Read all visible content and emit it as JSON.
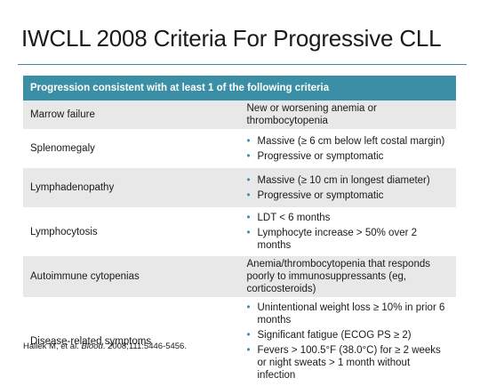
{
  "title": "IWCLL 2008 Criteria For Progressive CLL",
  "table": {
    "header": "Progression consistent with at least 1 of the following criteria",
    "rows": [
      {
        "label": "Marrow failure",
        "text": "New or worsening anemia or thrombocytopenia"
      },
      {
        "label": "Splenomegaly",
        "bullets": [
          "Massive (≥ 6 cm below left costal margin)",
          "Progressive or symptomatic"
        ]
      },
      {
        "label": "Lymphadenopathy",
        "bullets": [
          "Massive (≥ 10 cm in longest diameter)",
          "Progressive or symptomatic"
        ]
      },
      {
        "label": "Lymphocytosis",
        "bullets": [
          "LDT < 6 months",
          "Lymphocyte increase > 50% over 2 months"
        ]
      },
      {
        "label": "Autoimmune cytopenias",
        "text": "Anemia/thrombocytopenia that responds poorly to immunosuppressants (eg, corticosteroids)"
      },
      {
        "label": "Disease-related symptoms",
        "bullets": [
          "Unintentional weight loss ≥ 10% in prior 6 months",
          "Significant fatigue (ECOG PS ≥ 2)",
          "Fevers > 100.5°F (38.0°C) for ≥ 2 weeks or night sweats > 1 month without infection"
        ]
      }
    ]
  },
  "citation": {
    "authors": "Hallek M, et al. ",
    "journal": "Blood",
    "details": ". 2008;111:5446-5456."
  }
}
